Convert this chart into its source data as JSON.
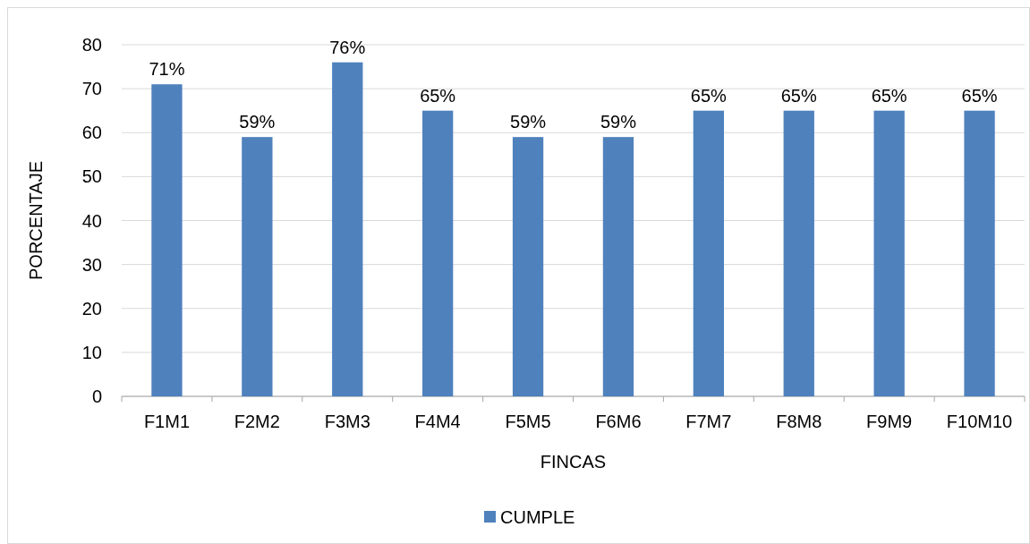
{
  "chart_data": {
    "type": "bar",
    "xlabel": "FINCAS",
    "ylabel": "PORCENTAJE",
    "categories": [
      "F1M1",
      "F2M2",
      "F3M3",
      "F4M4",
      "F5M5",
      "F6M6",
      "F7M7",
      "F8M8",
      "F9M9",
      "F10M10"
    ],
    "series": [
      {
        "name": "CUMPLE",
        "color": "#4f81bd",
        "values": [
          71,
          59,
          76,
          65,
          59,
          59,
          65,
          65,
          65,
          65
        ],
        "value_labels": [
          "71%",
          "59%",
          "76%",
          "65%",
          "59%",
          "59%",
          "65%",
          "65%",
          "65%",
          "65%"
        ]
      }
    ],
    "ylim": [
      0,
      80
    ],
    "yticks": [
      0,
      10,
      20,
      30,
      40,
      50,
      60,
      70,
      80
    ],
    "grid": "y",
    "legend": "bottom"
  }
}
